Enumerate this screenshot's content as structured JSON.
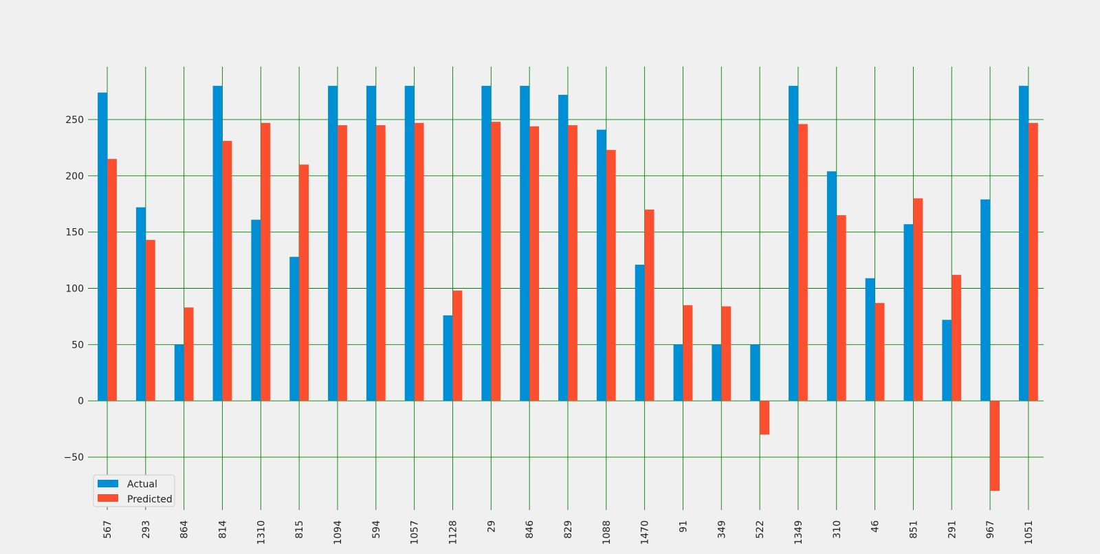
{
  "chart_data": {
    "type": "bar",
    "title": "",
    "xlabel": "",
    "ylabel": "",
    "categories": [
      "567",
      "293",
      "864",
      "814",
      "1310",
      "815",
      "1094",
      "594",
      "1057",
      "1128",
      "29",
      "846",
      "829",
      "1088",
      "1470",
      "91",
      "349",
      "522",
      "1349",
      "310",
      "46",
      "851",
      "291",
      "967",
      "1051"
    ],
    "series": [
      {
        "name": "Actual",
        "color": "#008fd5",
        "values": [
          274,
          172,
          50,
          280,
          161,
          128,
          280,
          280,
          280,
          76,
          280,
          280,
          272,
          241,
          121,
          50,
          50,
          50,
          280,
          204,
          109,
          157,
          72,
          179,
          280
        ]
      },
      {
        "name": "Predicted",
        "color": "#fc4f30",
        "values": [
          215,
          143,
          83,
          231,
          247,
          210,
          245,
          245,
          247,
          98,
          248,
          244,
          245,
          223,
          170,
          85,
          84,
          -30,
          246,
          165,
          87,
          180,
          112,
          -80,
          247
        ]
      }
    ],
    "y_ticks": [
      -50,
      0,
      50,
      100,
      150,
      200,
      250
    ],
    "y_tick_labels": [
      "−50",
      "0",
      "50",
      "100",
      "150",
      "200",
      "250"
    ],
    "ylim": [
      -97,
      297
    ],
    "grid": true,
    "grid_color": "#008000",
    "background_color": "#f0f0f0",
    "legend": {
      "position": "lower-left",
      "entries": [
        "Actual",
        "Predicted"
      ]
    }
  }
}
